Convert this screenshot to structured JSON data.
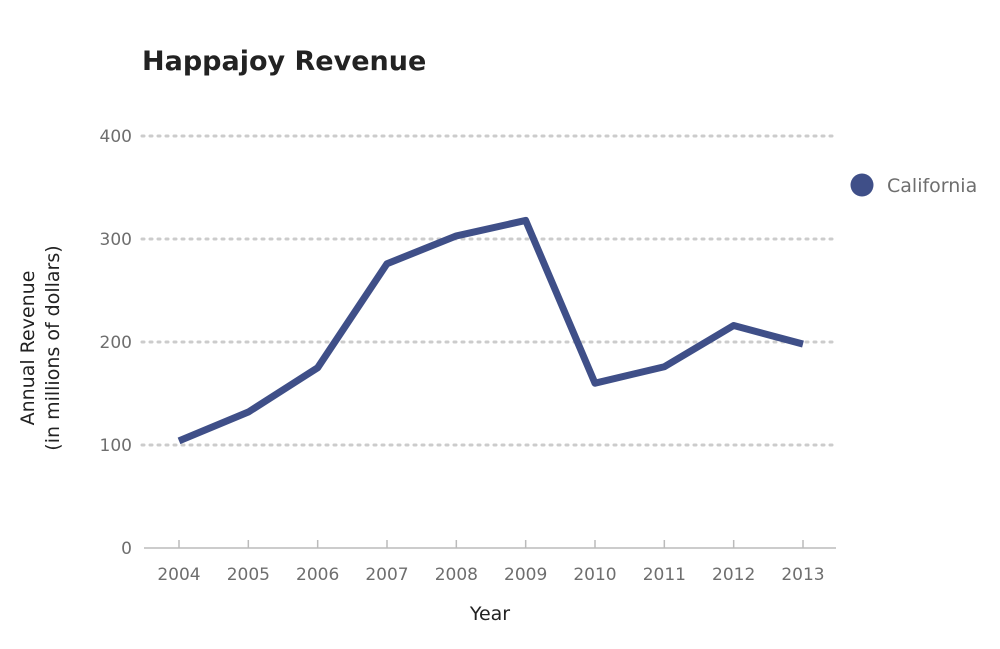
{
  "chart_data": {
    "type": "line",
    "title": "Happajoy Revenue",
    "xlabel": "Year",
    "ylabel": [
      "Annual Revenue",
      "(in millions of dollars)"
    ],
    "categories": [
      "2004",
      "2005",
      "2006",
      "2007",
      "2008",
      "2009",
      "2010",
      "2011",
      "2012",
      "2013"
    ],
    "yticks": [
      0,
      100,
      200,
      300,
      400
    ],
    "ylim": [
      0,
      400
    ],
    "grid": true,
    "legend_position": "right",
    "series": [
      {
        "name": "California",
        "color": "#3f4f88",
        "values": [
          104,
          132,
          175,
          276,
          303,
          318,
          160,
          176,
          216,
          198
        ]
      }
    ]
  }
}
